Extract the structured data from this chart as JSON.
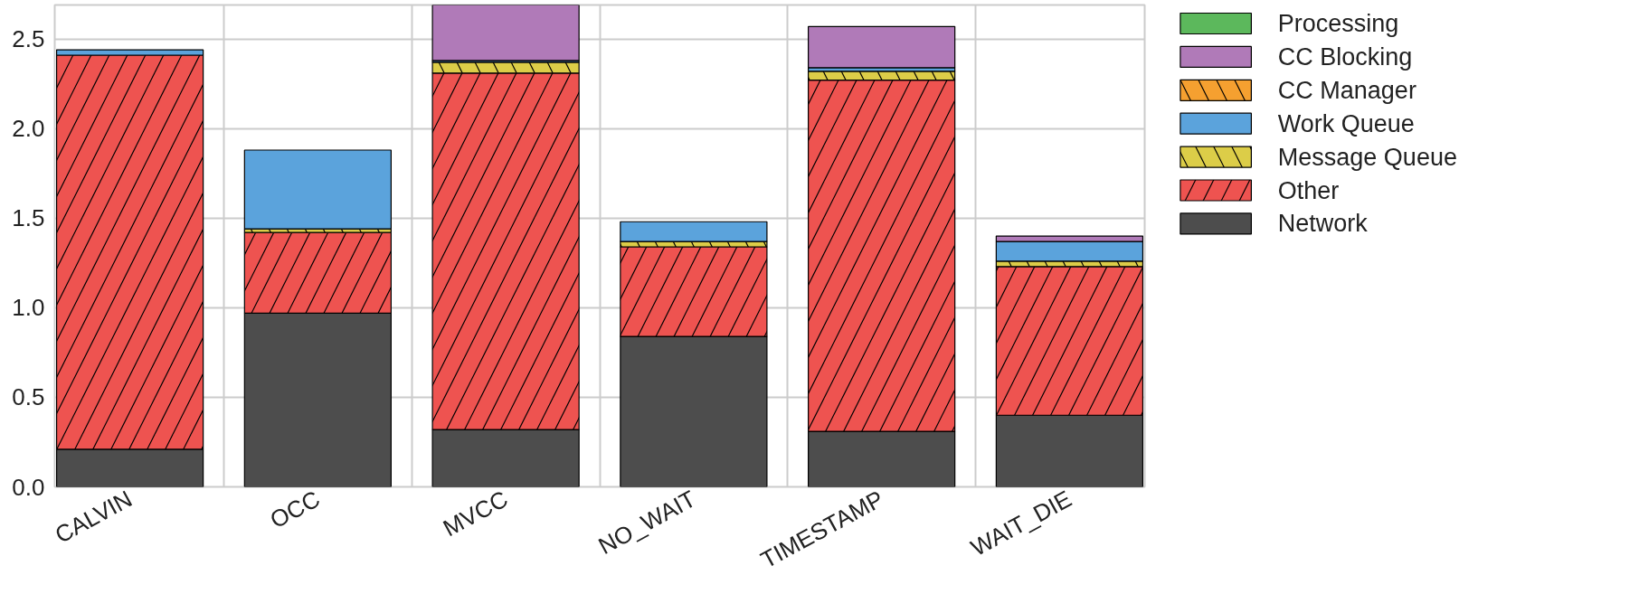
{
  "chart_data": {
    "type": "bar",
    "stacked": true,
    "categories": [
      "CALVIN",
      "OCC",
      "MVCC",
      "NO_WAIT",
      "TIMESTAMP",
      "WAIT_DIE"
    ],
    "series": [
      {
        "name": "Network",
        "color": "#4d4d4d",
        "values": [
          0.21,
          0.97,
          0.32,
          0.84,
          0.31,
          0.4
        ]
      },
      {
        "name": "Other",
        "color": "#ee5350",
        "values": [
          2.2,
          0.45,
          1.99,
          0.5,
          1.96,
          0.83
        ]
      },
      {
        "name": "Message Queue",
        "color": "#dccd48",
        "values": [
          0.0,
          0.02,
          0.06,
          0.03,
          0.05,
          0.03
        ]
      },
      {
        "name": "Work Queue",
        "color": "#5ba3dc",
        "values": [
          0.03,
          0.44,
          0.01,
          0.11,
          0.02,
          0.11
        ]
      },
      {
        "name": "CC Manager",
        "color": "#f5a030",
        "values": [
          0,
          0,
          0,
          0,
          0,
          0
        ]
      },
      {
        "name": "CC Blocking",
        "color": "#b07ab8",
        "values": [
          0.0,
          0.0,
          0.31,
          0.0,
          0.23,
          0.03
        ]
      },
      {
        "name": "Processing",
        "color": "#5cb85c",
        "values": [
          0,
          0,
          0,
          0,
          0,
          0
        ]
      }
    ],
    "ylim": [
      0,
      2.69
    ],
    "yticks": [
      {
        "value": 0,
        "label": "0.0"
      },
      {
        "value": 0.5,
        "label": "0.5"
      },
      {
        "value": 1,
        "label": "1.0"
      },
      {
        "value": 1.5,
        "label": "1.5"
      },
      {
        "value": 2,
        "label": "2.0"
      },
      {
        "value": 2.5,
        "label": "2.5"
      }
    ],
    "grid": true,
    "legend": "top right"
  }
}
